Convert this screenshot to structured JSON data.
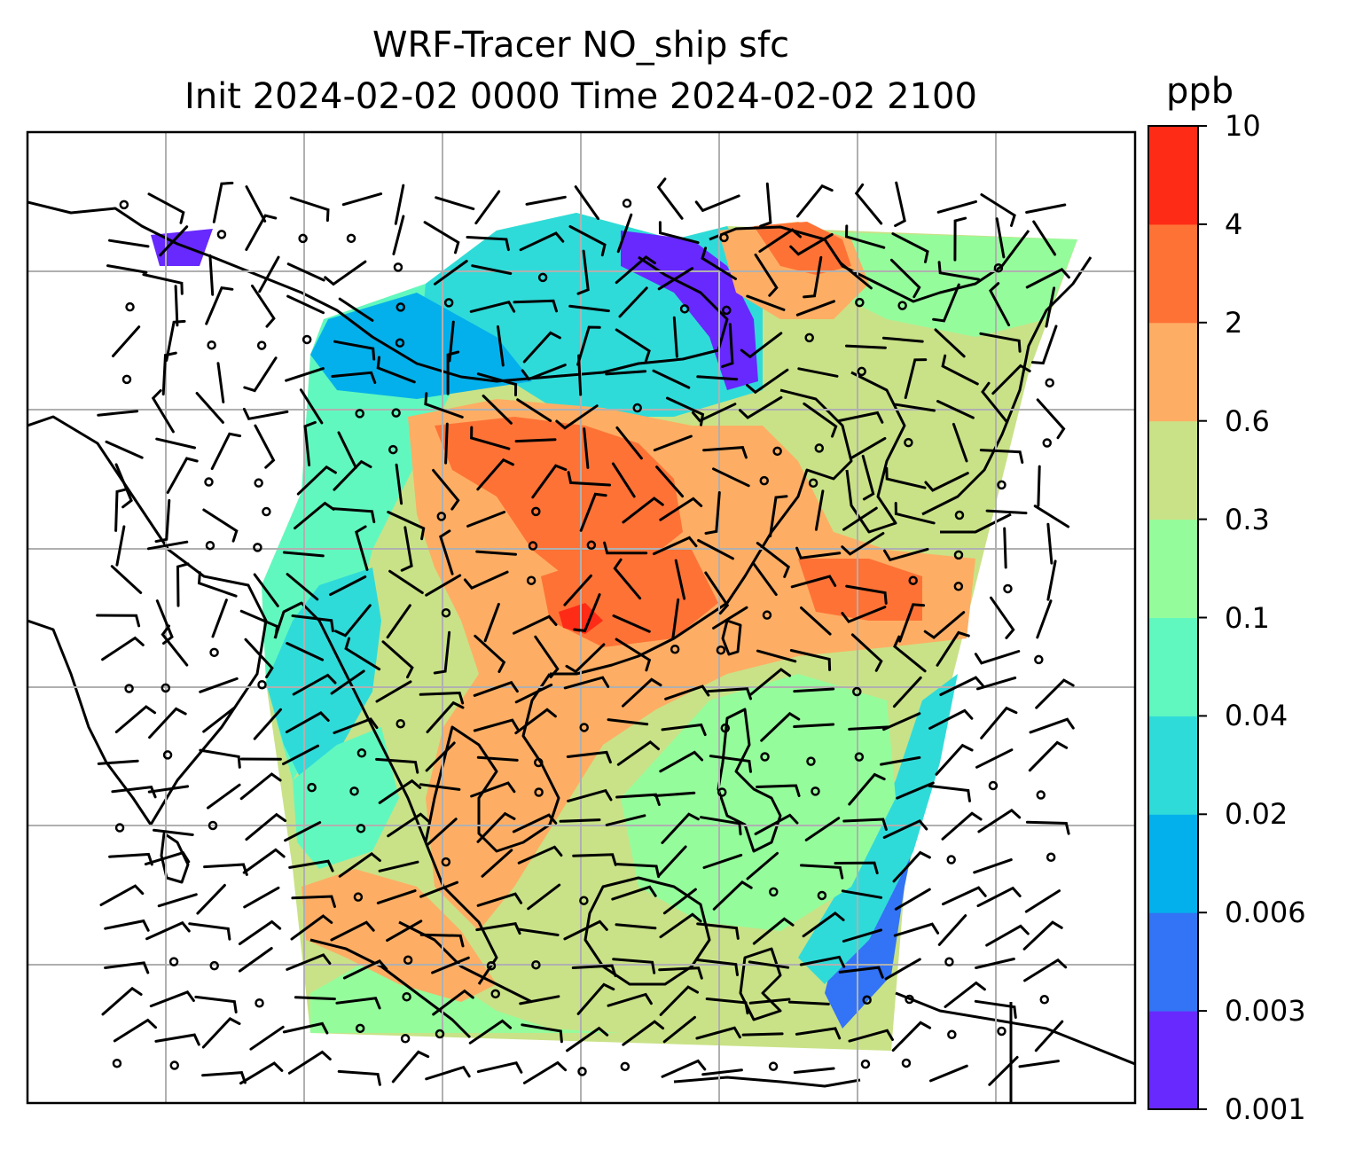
{
  "title": {
    "line1": "WRF-Tracer NO_ship sfc",
    "line2": "Init 2024-02-02 0000 Time 2024-02-02 2100"
  },
  "colorbar": {
    "unit": "ppb",
    "ticks": [
      "0.001",
      "0.003",
      "0.006",
      "0.02",
      "0.04",
      "0.1",
      "0.3",
      "0.6",
      "2",
      "4",
      "10"
    ],
    "colors": [
      "#6729fd",
      "#3373f5",
      "#04b0eb",
      "#2fdbd9",
      "#61f8bf",
      "#95fc9c",
      "#c9e287",
      "#fdae64",
      "#fe7236",
      "#fe2b17"
    ]
  },
  "map": {
    "gridlines": true,
    "features": [
      "coastlines",
      "country-borders",
      "wind-barbs",
      "calm-wind-circles"
    ]
  }
}
